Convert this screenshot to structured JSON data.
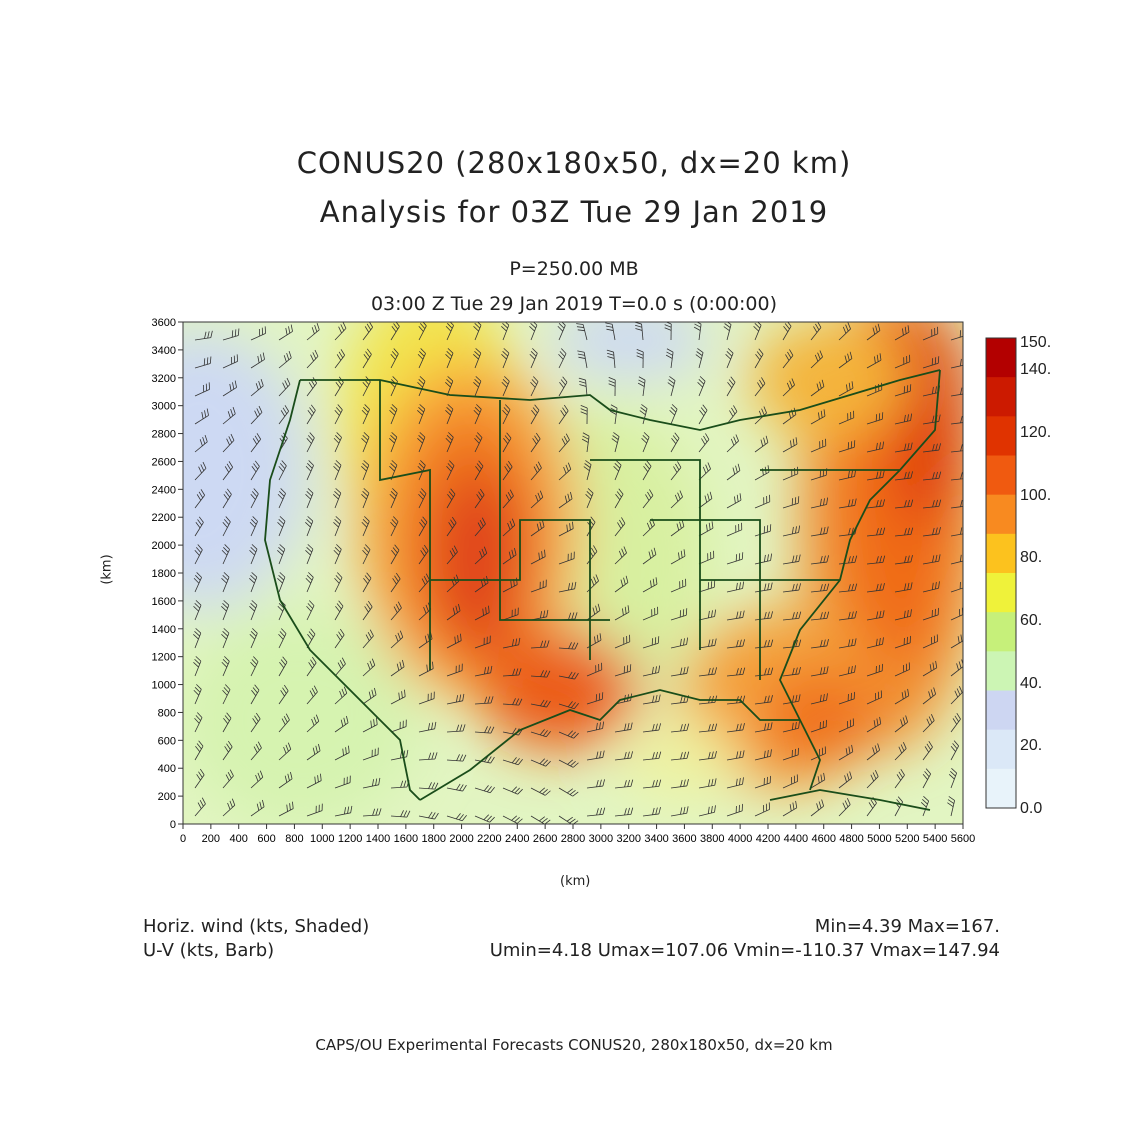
{
  "titles": {
    "line1": "CONUS20 (280x180x50, dx=20 km)",
    "line2": "Analysis for 03Z Tue 29 Jan 2019",
    "level": "P=250.00 MB",
    "time": "03:00 Z Tue 29 Jan 2019    T=0.0 s (0:00:00)"
  },
  "axes": {
    "x_label": "(km)",
    "y_label": "(km)",
    "x_ticks": [
      "0",
      "200",
      "400",
      "600",
      "800",
      "1000",
      "1200",
      "1400",
      "1600",
      "1800",
      "2000",
      "2200",
      "2400",
      "2600",
      "2800",
      "3000",
      "3200",
      "3400",
      "3600",
      "3800",
      "4000",
      "4200",
      "4400",
      "4600",
      "4800",
      "5000",
      "5200",
      "5400",
      "5600"
    ],
    "y_ticks": [
      "0",
      "200",
      "400",
      "600",
      "800",
      "1000",
      "1200",
      "1400",
      "1600",
      "1800",
      "2000",
      "2200",
      "2400",
      "2600",
      "2800",
      "3000",
      "3200",
      "3400",
      "3600"
    ]
  },
  "colorbar": {
    "labels": [
      "150.",
      "140.",
      "120.",
      "100.",
      "80.",
      "60.",
      "40.",
      "20.",
      "0.0"
    ],
    "colors": [
      "#b30000",
      "#cc1a00",
      "#e03300",
      "#f05a10",
      "#f88a20",
      "#fcc21e",
      "#eff23a",
      "#c6f07a",
      "#ccf5b4",
      "#cdd6f2",
      "#dbe8f7",
      "#e8f3fa"
    ]
  },
  "info": {
    "var1": "Horiz. wind (kts, Shaded)",
    "var2": "U-V (kts, Barb)",
    "minmax": "Min=4.39 Max=167.",
    "uv": "Umin=4.18 Umax=107.06 Vmin=-110.37 Vmax=147.94"
  },
  "footer": "CAPS/OU Experimental Forecasts   CONUS20, 280x180x50, dx=20 km",
  "map_colors": {
    "outline": "#1a4d1a",
    "barb": "#2a2a2a"
  }
}
